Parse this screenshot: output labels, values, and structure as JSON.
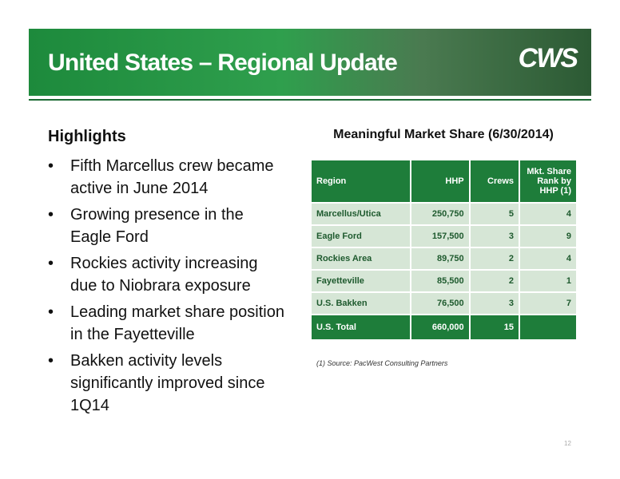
{
  "header": {
    "title": "United States – Regional Update",
    "logo": "CWS"
  },
  "highlights": {
    "heading": "Highlights",
    "bullets": [
      "Fifth Marcellus crew became active in June 2014",
      "Growing presence in the Eagle Ford",
      "Rockies activity increasing due to Niobrara exposure",
      "Leading market share position in the Fayetteville",
      "Bakken activity levels significantly improved since 1Q14"
    ]
  },
  "table": {
    "title": "Meaningful Market Share (6/30/2014)",
    "columns": [
      "Region",
      "HHP",
      "Crews",
      "Mkt. Share Rank by HHP (1)"
    ],
    "rows": [
      [
        "Marcellus/Utica",
        "250,750",
        "5",
        "4"
      ],
      [
        "Eagle Ford",
        "157,500",
        "3",
        "9"
      ],
      [
        "Rockies Area",
        "89,750",
        "2",
        "4"
      ],
      [
        "Fayetteville",
        "85,500",
        "2",
        "1"
      ],
      [
        "U.S. Bakken",
        "76,500",
        "3",
        "7"
      ]
    ],
    "total": [
      "U.S. Total",
      "660,000",
      "15"
    ],
    "footnote": "(1) Source: PacWest Consulting Partners"
  },
  "page_number": "12"
}
